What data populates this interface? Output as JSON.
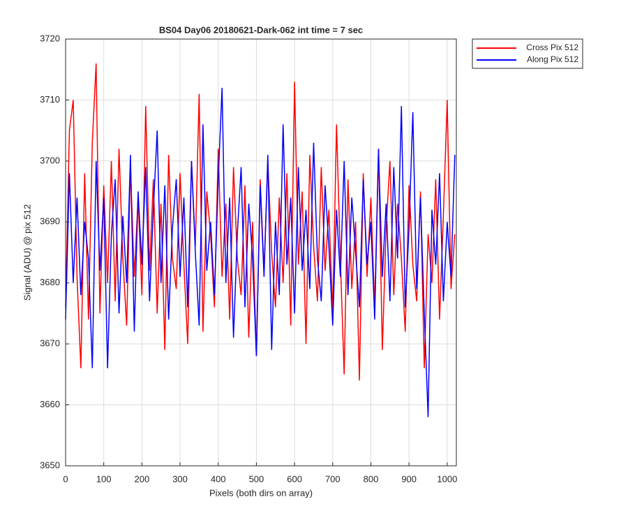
{
  "chart_data": {
    "type": "line",
    "title": "BS04 Day06 20180621-Dark-062 int time = 7 sec",
    "x_label": "Pixels (both dirs on array)",
    "y_label": "Signal (ADU) @ pix 512",
    "x": [
      0,
      10,
      20,
      30,
      40,
      50,
      60,
      70,
      80,
      90,
      100,
      110,
      120,
      130,
      140,
      150,
      160,
      170,
      180,
      190,
      200,
      210,
      220,
      230,
      240,
      250,
      260,
      270,
      280,
      290,
      300,
      310,
      320,
      330,
      340,
      350,
      360,
      370,
      380,
      390,
      400,
      410,
      420,
      430,
      440,
      450,
      460,
      470,
      480,
      490,
      500,
      510,
      520,
      530,
      540,
      550,
      560,
      570,
      580,
      590,
      600,
      610,
      620,
      630,
      640,
      650,
      660,
      670,
      680,
      690,
      700,
      710,
      720,
      730,
      740,
      750,
      760,
      770,
      780,
      790,
      800,
      810,
      820,
      830,
      840,
      850,
      860,
      870,
      880,
      890,
      900,
      910,
      920,
      930,
      940,
      950,
      960,
      970,
      980,
      990,
      1000,
      1010,
      1020
    ],
    "series": [
      {
        "name": "Cross Pix 512",
        "color": "#ff0000",
        "values": [
          3676,
          3705,
          3710,
          3681,
          3666,
          3698,
          3674,
          3703,
          3716,
          3675,
          3696,
          3680,
          3700,
          3677,
          3702,
          3684,
          3673,
          3699,
          3681,
          3694,
          3678,
          3709,
          3682,
          3697,
          3675,
          3693,
          3669,
          3701,
          3684,
          3679,
          3698,
          3683,
          3670,
          3700,
          3686,
          3711,
          3672,
          3695,
          3688,
          3676,
          3702,
          3681,
          3693,
          3674,
          3699,
          3684,
          3678,
          3696,
          3671,
          3690,
          3668,
          3697,
          3682,
          3700,
          3685,
          3676,
          3694,
          3680,
          3698,
          3673,
          3713,
          3683,
          3695,
          3670,
          3701,
          3686,
          3677,
          3699,
          3682,
          3692,
          3675,
          3706,
          3684,
          3665,
          3697,
          3679,
          3690,
          3664,
          3698,
          3681,
          3694,
          3676,
          3702,
          3669,
          3689,
          3700,
          3678,
          3693,
          3684,
          3672,
          3696,
          3683,
          3677,
          3695,
          3666,
          3688,
          3680,
          3697,
          3674,
          3691,
          3710,
          3679,
          3688
        ]
      },
      {
        "name": "Along Pix 512",
        "color": "#0000ff",
        "values": [
          3674,
          3698,
          3680,
          3694,
          3678,
          3690,
          3684,
          3666,
          3700,
          3682,
          3694,
          3666,
          3688,
          3697,
          3675,
          3691,
          3680,
          3701,
          3672,
          3695,
          3683,
          3699,
          3677,
          3692,
          3705,
          3680,
          3696,
          3674,
          3689,
          3697,
          3681,
          3694,
          3676,
          3700,
          3685,
          3673,
          3706,
          3682,
          3690,
          3678,
          3697,
          3712,
          3680,
          3694,
          3671,
          3688,
          3699,
          3676,
          3693,
          3684,
          3668,
          3696,
          3681,
          3701,
          3669,
          3690,
          3678,
          3706,
          3683,
          3694,
          3675,
          3699,
          3682,
          3692,
          3679,
          3703,
          3684,
          3677,
          3696,
          3686,
          3673,
          3692,
          3681,
          3700,
          3678,
          3694,
          3685,
          3676,
          3697,
          3683,
          3690,
          3674,
          3702,
          3681,
          3693,
          3677,
          3699,
          3684,
          3709,
          3676,
          3689,
          3708,
          3679,
          3694,
          3675,
          3658,
          3692,
          3683,
          3698,
          3677,
          3690,
          3681,
          3701
        ]
      }
    ],
    "xlim": [
      0,
      1024
    ],
    "xticks": [
      0,
      100,
      200,
      300,
      400,
      500,
      600,
      700,
      800,
      900,
      1000
    ],
    "ylim": [
      3650,
      3720
    ],
    "yticks": [
      3650,
      3660,
      3670,
      3680,
      3690,
      3700,
      3710,
      3720
    ],
    "grid": true,
    "legend": "outside-top-right"
  }
}
